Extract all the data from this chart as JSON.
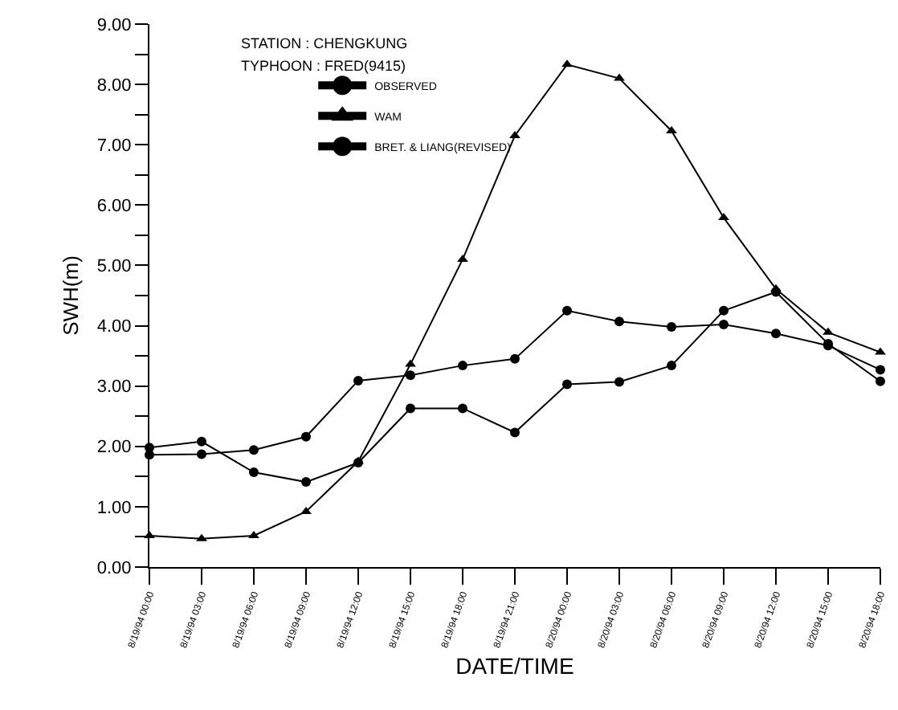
{
  "chart_data": {
    "type": "line",
    "xlabel": "DATE/TIME",
    "ylabel": "SWH(m)",
    "annotations": [
      "STATION : CHENGKUNG",
      "TYPHOON : FRED(9415)"
    ],
    "categories": [
      "8/19/94 00:00",
      "8/19/94 03:00",
      "8/19/94 06:00",
      "8/19/94 09:00",
      "8/19/94 12:00",
      "8/19/94 15:00",
      "8/19/94 18:00",
      "8/19/94 21:00",
      "8/20/94 00:00",
      "8/20/94 03:00",
      "8/20/94 06:00",
      "8/20/94 09:00",
      "8/20/94 12:00",
      "8/20/94 15:00",
      "8/20/94 18:00"
    ],
    "series": [
      {
        "name": "OBSERVED",
        "color": "#000000",
        "marker": "circle",
        "values": [
          1.98,
          2.08,
          1.57,
          1.41,
          1.73,
          2.63,
          2.63,
          2.23,
          3.03,
          3.07,
          3.34,
          4.25,
          4.56,
          3.7,
          3.08
        ]
      },
      {
        "name": "WAM",
        "color": "#000000",
        "marker": "triangle",
        "values": [
          0.52,
          0.47,
          0.52,
          0.92,
          1.75,
          3.36,
          5.1,
          7.15,
          8.33,
          8.1,
          7.23,
          5.79,
          4.61,
          3.89,
          3.56
        ]
      },
      {
        "name": "BRET. & LIANG(REVISED)",
        "color": "#000000",
        "marker": "circle",
        "values": [
          1.86,
          1.87,
          1.94,
          2.16,
          3.09,
          3.18,
          3.34,
          3.45,
          4.25,
          4.07,
          3.98,
          4.02,
          3.87,
          3.67,
          3.27
        ]
      }
    ],
    "ylim": [
      0,
      9
    ],
    "yticks": [
      {
        "value": 0,
        "label": "0.00"
      },
      {
        "value": 0.5,
        "label": null
      },
      {
        "value": 1,
        "label": "1.00"
      },
      {
        "value": 1.5,
        "label": null
      },
      {
        "value": 2,
        "label": "2.00"
      },
      {
        "value": 2.5,
        "label": null
      },
      {
        "value": 3,
        "label": "3.00"
      },
      {
        "value": 3.5,
        "label": null
      },
      {
        "value": 4,
        "label": "4.00"
      },
      {
        "value": 4.5,
        "label": null
      },
      {
        "value": 5,
        "label": "5.00"
      },
      {
        "value": 5.5,
        "label": null
      },
      {
        "value": 6,
        "label": "6.00"
      },
      {
        "value": 6.5,
        "label": null
      },
      {
        "value": 7,
        "label": "7.00"
      },
      {
        "value": 7.5,
        "label": null
      },
      {
        "value": 8,
        "label": "8.00"
      },
      {
        "value": 8.5,
        "label": null
      },
      {
        "value": 9,
        "label": "9.00"
      }
    ],
    "legend": "top left",
    "line_style": "solid"
  }
}
